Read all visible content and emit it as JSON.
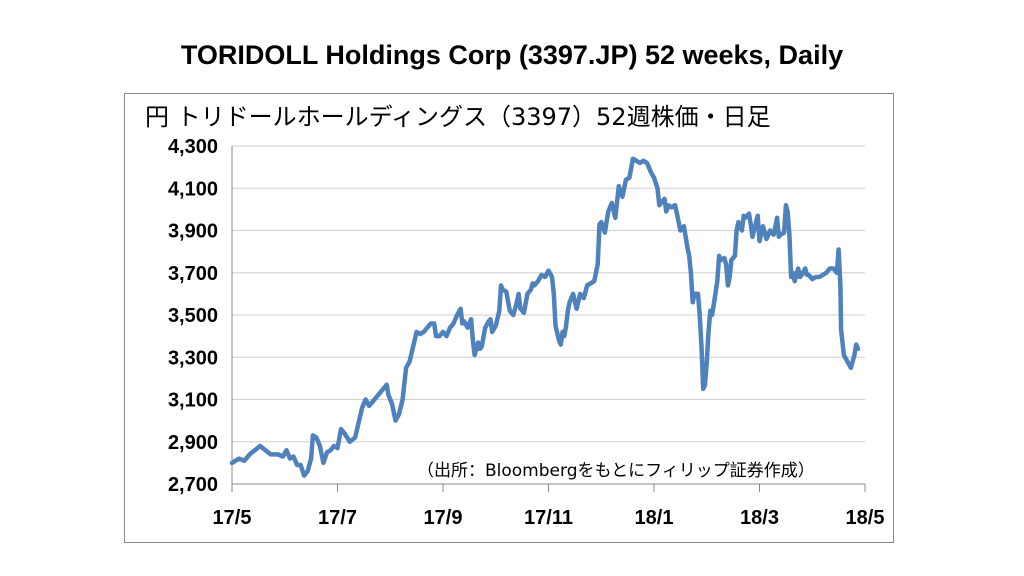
{
  "title": "TORIDOLL Holdings Corp (3397.JP) 52 weeks, Daily",
  "chart_data": {
    "type": "line",
    "subtitle": "円 トリドールホールディングス（3397）52週株価・日足",
    "source": "（出所：Bloombergをもとにフィリップ証券作成）",
    "ylim": [
      2700,
      4300
    ],
    "y_ticks": [
      "4,300",
      "4,100",
      "3,900",
      "3,700",
      "3,500",
      "3,300",
      "3,100",
      "2,900",
      "2,700"
    ],
    "y_tick_values": [
      4300,
      4100,
      3900,
      3700,
      3500,
      3300,
      3100,
      2900,
      2700
    ],
    "x_ticks": [
      "17/5",
      "17/7",
      "17/9",
      "17/11",
      "18/1",
      "18/3",
      "18/5"
    ],
    "grid": "horizontal",
    "line_color": "#4f81bd",
    "series": [
      {
        "values": [
          [
            0.0,
            2800
          ],
          [
            0.2,
            2820
          ],
          [
            0.35,
            2810
          ],
          [
            0.5,
            2840
          ],
          [
            0.65,
            2860
          ],
          [
            0.8,
            2880
          ],
          [
            0.95,
            2860
          ],
          [
            1.1,
            2840
          ],
          [
            1.3,
            2840
          ],
          [
            1.45,
            2830
          ],
          [
            1.55,
            2860
          ],
          [
            1.65,
            2820
          ],
          [
            1.75,
            2830
          ],
          [
            1.85,
            2790
          ],
          [
            1.95,
            2790
          ],
          [
            2.05,
            2740
          ],
          [
            2.15,
            2760
          ],
          [
            2.25,
            2820
          ],
          [
            2.3,
            2930
          ],
          [
            2.4,
            2920
          ],
          [
            2.5,
            2880
          ],
          [
            2.6,
            2800
          ],
          [
            2.7,
            2850
          ],
          [
            2.8,
            2860
          ],
          [
            2.9,
            2880
          ],
          [
            3.0,
            2870
          ],
          [
            3.1,
            2960
          ],
          [
            3.2,
            2940
          ],
          [
            3.35,
            2900
          ],
          [
            3.5,
            2920
          ],
          [
            3.6,
            2990
          ],
          [
            3.7,
            3060
          ],
          [
            3.8,
            3100
          ],
          [
            3.9,
            3070
          ],
          [
            4.0,
            3090
          ],
          [
            4.1,
            3110
          ],
          [
            4.2,
            3130
          ],
          [
            4.3,
            3150
          ],
          [
            4.4,
            3170
          ],
          [
            4.45,
            3120
          ],
          [
            4.55,
            3080
          ],
          [
            4.65,
            3000
          ],
          [
            4.75,
            3030
          ],
          [
            4.85,
            3100
          ],
          [
            4.95,
            3250
          ],
          [
            5.05,
            3280
          ],
          [
            5.15,
            3350
          ],
          [
            5.25,
            3420
          ],
          [
            5.35,
            3410
          ],
          [
            5.45,
            3420
          ],
          [
            5.55,
            3440
          ],
          [
            5.65,
            3460
          ],
          [
            5.75,
            3460
          ],
          [
            5.8,
            3400
          ],
          [
            5.9,
            3400
          ],
          [
            6.0,
            3420
          ],
          [
            6.1,
            3400
          ],
          [
            6.2,
            3440
          ],
          [
            6.3,
            3460
          ],
          [
            6.4,
            3500
          ],
          [
            6.5,
            3530
          ],
          [
            6.55,
            3460
          ],
          [
            6.6,
            3470
          ],
          [
            6.7,
            3440
          ],
          [
            6.8,
            3480
          ],
          [
            6.85,
            3380
          ],
          [
            6.9,
            3310
          ],
          [
            7.0,
            3370
          ],
          [
            7.05,
            3340
          ],
          [
            7.1,
            3350
          ],
          [
            7.2,
            3440
          ],
          [
            7.3,
            3470
          ],
          [
            7.35,
            3480
          ],
          [
            7.4,
            3420
          ],
          [
            7.5,
            3450
          ],
          [
            7.6,
            3520
          ],
          [
            7.65,
            3640
          ],
          [
            7.7,
            3620
          ],
          [
            7.8,
            3610
          ],
          [
            7.9,
            3520
          ],
          [
            8.0,
            3500
          ],
          [
            8.1,
            3560
          ],
          [
            8.15,
            3600
          ],
          [
            8.2,
            3530
          ],
          [
            8.3,
            3510
          ],
          [
            8.4,
            3600
          ],
          [
            8.5,
            3620
          ],
          [
            8.55,
            3650
          ],
          [
            8.6,
            3640
          ],
          [
            8.7,
            3660
          ],
          [
            8.8,
            3690
          ],
          [
            8.9,
            3680
          ],
          [
            9.0,
            3710
          ],
          [
            9.1,
            3680
          ],
          [
            9.15,
            3600
          ],
          [
            9.2,
            3450
          ],
          [
            9.3,
            3380
          ],
          [
            9.35,
            3360
          ],
          [
            9.4,
            3420
          ],
          [
            9.45,
            3400
          ],
          [
            9.5,
            3450
          ],
          [
            9.55,
            3520
          ],
          [
            9.6,
            3560
          ],
          [
            9.7,
            3600
          ],
          [
            9.8,
            3530
          ],
          [
            9.9,
            3600
          ],
          [
            10.0,
            3580
          ],
          [
            10.1,
            3640
          ],
          [
            10.2,
            3650
          ],
          [
            10.3,
            3660
          ],
          [
            10.4,
            3740
          ],
          [
            10.45,
            3930
          ],
          [
            10.5,
            3940
          ],
          [
            10.6,
            3890
          ],
          [
            10.7,
            3990
          ],
          [
            10.8,
            4030
          ],
          [
            10.9,
            3960
          ],
          [
            11.0,
            4110
          ],
          [
            11.1,
            4060
          ],
          [
            11.2,
            4140
          ],
          [
            11.3,
            4150
          ],
          [
            11.4,
            4240
          ],
          [
            11.5,
            4230
          ],
          [
            11.6,
            4220
          ],
          [
            11.7,
            4230
          ],
          [
            11.8,
            4220
          ],
          [
            11.9,
            4180
          ],
          [
            12.0,
            4150
          ],
          [
            12.1,
            4100
          ],
          [
            12.15,
            4020
          ],
          [
            12.2,
            4030
          ],
          [
            12.3,
            4050
          ],
          [
            12.35,
            3990
          ],
          [
            12.4,
            4020
          ],
          [
            12.5,
            4010
          ],
          [
            12.6,
            4020
          ],
          [
            12.65,
            3980
          ],
          [
            12.75,
            3900
          ],
          [
            12.85,
            3920
          ],
          [
            12.95,
            3820
          ],
          [
            13.0,
            3780
          ],
          [
            13.05,
            3700
          ],
          [
            13.1,
            3560
          ],
          [
            13.15,
            3600
          ],
          [
            13.25,
            3600
          ],
          [
            13.3,
            3500
          ],
          [
            13.35,
            3350
          ],
          [
            13.4,
            3150
          ],
          [
            13.45,
            3170
          ],
          [
            13.5,
            3280
          ],
          [
            13.55,
            3420
          ],
          [
            13.6,
            3520
          ],
          [
            13.65,
            3500
          ],
          [
            13.7,
            3550
          ],
          [
            13.8,
            3660
          ],
          [
            13.85,
            3780
          ],
          [
            13.9,
            3760
          ],
          [
            14.0,
            3770
          ],
          [
            14.05,
            3740
          ],
          [
            14.1,
            3640
          ],
          [
            14.15,
            3680
          ],
          [
            14.2,
            3760
          ],
          [
            14.3,
            3780
          ],
          [
            14.35,
            3900
          ],
          [
            14.4,
            3940
          ],
          [
            14.5,
            3900
          ],
          [
            14.55,
            3970
          ],
          [
            14.6,
            3960
          ],
          [
            14.7,
            3980
          ],
          [
            14.75,
            3930
          ],
          [
            14.8,
            3870
          ],
          [
            14.9,
            3940
          ],
          [
            14.95,
            3970
          ],
          [
            15.0,
            3850
          ],
          [
            15.1,
            3920
          ],
          [
            15.2,
            3860
          ],
          [
            15.3,
            3900
          ],
          [
            15.4,
            3880
          ],
          [
            15.5,
            3960
          ],
          [
            15.55,
            3870
          ],
          [
            15.6,
            3880
          ],
          [
            15.7,
            3890
          ],
          [
            15.75,
            4020
          ],
          [
            15.8,
            3990
          ],
          [
            15.85,
            3880
          ],
          [
            15.9,
            3680
          ],
          [
            15.95,
            3700
          ],
          [
            16.0,
            3660
          ],
          [
            16.1,
            3720
          ],
          [
            16.15,
            3680
          ],
          [
            16.2,
            3690
          ],
          [
            16.3,
            3720
          ],
          [
            16.35,
            3690
          ],
          [
            16.4,
            3690
          ],
          [
            16.5,
            3670
          ],
          [
            16.6,
            3680
          ],
          [
            16.7,
            3680
          ],
          [
            16.8,
            3690
          ],
          [
            16.9,
            3700
          ],
          [
            17.0,
            3720
          ],
          [
            17.1,
            3720
          ],
          [
            17.2,
            3700
          ],
          [
            17.25,
            3810
          ],
          [
            17.3,
            3640
          ],
          [
            17.32,
            3430
          ],
          [
            17.4,
            3310
          ],
          [
            17.5,
            3280
          ],
          [
            17.6,
            3250
          ],
          [
            17.7,
            3310
          ],
          [
            17.75,
            3360
          ],
          [
            17.8,
            3340
          ]
        ]
      }
    ]
  }
}
